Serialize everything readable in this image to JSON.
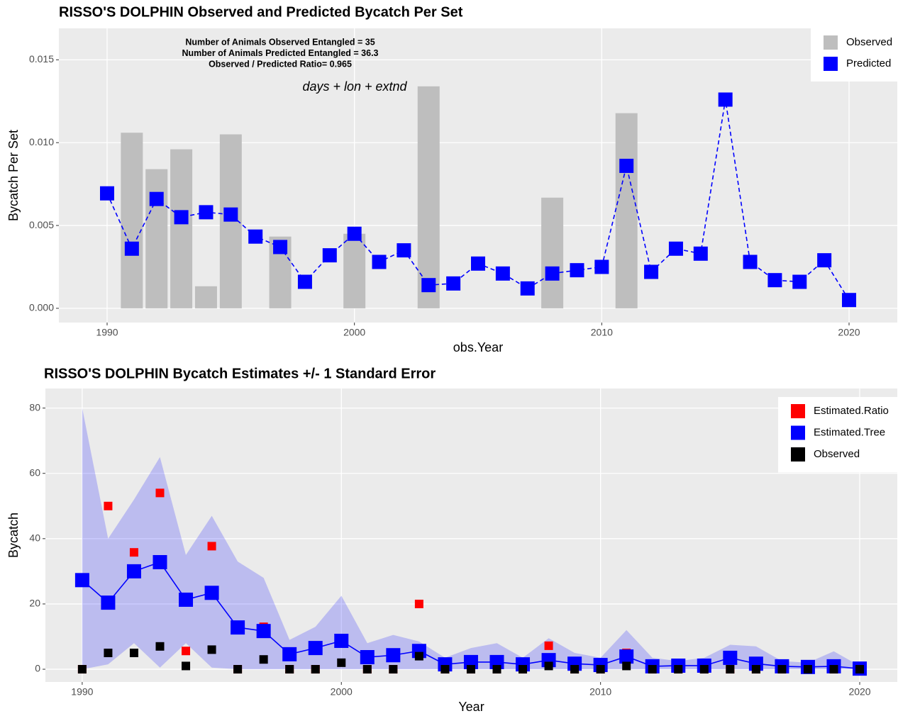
{
  "chart_data": [
    {
      "type": "combo",
      "title": "RISSO'S DOLPHIN Observed and Predicted Bycatch Per Set",
      "annotations": [
        "Number of Animals Observed Entangled = 35",
        "Number of Animals Predicted Entangled = 36.3",
        "Observed / Predicted Ratio= 0.965"
      ],
      "formula": "days + lon + extnd",
      "xlabel": "obs.Year",
      "ylabel": "Bycatch Per Set",
      "x": [
        1990,
        1991,
        1992,
        1993,
        1994,
        1995,
        1996,
        1997,
        1998,
        1999,
        2000,
        2001,
        2002,
        2003,
        2004,
        2005,
        2006,
        2007,
        2008,
        2009,
        2010,
        2011,
        2012,
        2013,
        2014,
        2015,
        2016,
        2017,
        2018,
        2019,
        2020
      ],
      "xlim": [
        1988.05,
        2021.95
      ],
      "xticks": [
        1990,
        2000,
        2010,
        2020
      ],
      "ylim": [
        -0.00086,
        0.0169
      ],
      "yticks": [
        {
          "value": 0,
          "label": "0.000"
        },
        {
          "value": 0.005,
          "label": "0.005"
        },
        {
          "value": 0.01,
          "label": "0.010"
        },
        {
          "value": 0.015,
          "label": "0.015"
        }
      ],
      "grid": true,
      "legend": "top-right",
      "series": [
        {
          "name": "Observed",
          "type": "bar",
          "color": "#bebebe",
          "values": [
            0,
            0.0106,
            0.0084,
            0.0096,
            0.00133,
            0.0105,
            0,
            0.00433,
            0,
            0,
            0.0045,
            0,
            0,
            0.0134,
            0,
            0,
            0,
            0,
            0.00668,
            0,
            0,
            0.01178,
            0,
            0,
            0,
            0,
            0,
            0,
            0,
            0,
            0
          ]
        },
        {
          "name": "Predicted",
          "type": "line",
          "dash": true,
          "color": "#0000ff",
          "values": [
            0.00694,
            0.0036,
            0.0066,
            0.0055,
            0.0058,
            0.00566,
            0.00433,
            0.0037,
            0.0016,
            0.0032,
            0.0045,
            0.0028,
            0.0035,
            0.0014,
            0.0015,
            0.0027,
            0.0021,
            0.0012,
            0.0021,
            0.0023,
            0.0025,
            0.0086,
            0.0022,
            0.0036,
            0.0033,
            0.0126,
            0.0028,
            0.0017,
            0.0016,
            0.0029,
            0.0005
          ]
        }
      ]
    },
    {
      "type": "combo",
      "title": "RISSO'S DOLPHIN Bycatch Estimates +/- 1 Standard Error",
      "xlabel": "Year",
      "ylabel": "Bycatch",
      "x": [
        1990,
        1991,
        1992,
        1993,
        1994,
        1995,
        1996,
        1997,
        1998,
        1999,
        2000,
        2001,
        2002,
        2003,
        2004,
        2005,
        2006,
        2007,
        2008,
        2009,
        2010,
        2011,
        2012,
        2013,
        2014,
        2015,
        2016,
        2017,
        2018,
        2019,
        2020
      ],
      "xlim": [
        1988.58,
        2021.45
      ],
      "xticks": [
        1990,
        2000,
        2010,
        2020
      ],
      "ylim": [
        -3.9,
        86
      ],
      "yticks": [
        0,
        20,
        40,
        60,
        80
      ],
      "grid": true,
      "legend": "top-right",
      "band": {
        "color": "#0000ff",
        "upper": [
          80,
          40,
          52,
          65,
          35,
          47,
          33,
          28,
          9,
          13,
          22.5,
          8,
          10.5,
          8.5,
          3.5,
          6.5,
          8,
          3.5,
          9.5,
          5,
          3.5,
          12,
          3.5,
          2.5,
          3.5,
          7.5,
          7,
          2.5,
          2,
          5.5,
          1
        ],
        "lower": [
          0,
          1.5,
          8,
          0.5,
          8,
          0.5,
          0,
          0,
          0,
          0,
          0,
          0,
          0,
          0,
          0,
          0,
          0,
          0,
          0,
          0,
          0,
          0,
          0,
          0,
          0,
          0,
          0,
          0,
          0,
          0,
          0
        ]
      },
      "series": [
        {
          "name": "Estimated.Ratio",
          "type": "points",
          "color": "#ff0000",
          "values": [
            0,
            50,
            35.8,
            54,
            5.6,
            37.7,
            0,
            13,
            0,
            0,
            8.7,
            0,
            0,
            20,
            0,
            0,
            0,
            0,
            7.2,
            0,
            0,
            5,
            0,
            0,
            0,
            0,
            0,
            0,
            0,
            0,
            0
          ]
        },
        {
          "name": "Estimated.Tree",
          "type": "line",
          "dash": false,
          "color": "#0000ff",
          "values": [
            27.3,
            20.4,
            30,
            32.8,
            21.3,
            23.4,
            12.8,
            11.7,
            4.6,
            6.5,
            8.7,
            3.7,
            4.3,
            5.6,
            1.5,
            2.2,
            2.2,
            1.5,
            2.8,
            1.7,
            1.3,
            3.9,
            0.9,
            1.1,
            1.1,
            3.5,
            1.7,
            0.9,
            0.7,
            0.9,
            0.2
          ]
        },
        {
          "name": "Observed",
          "type": "points",
          "color": "#000000",
          "values": [
            0,
            5,
            5,
            7,
            1,
            6,
            0,
            3,
            0,
            0,
            2,
            0,
            0,
            4,
            0,
            0,
            0,
            0,
            1,
            0,
            0,
            1,
            0,
            0,
            0,
            0,
            0,
            0,
            0,
            0,
            0
          ]
        }
      ]
    }
  ]
}
